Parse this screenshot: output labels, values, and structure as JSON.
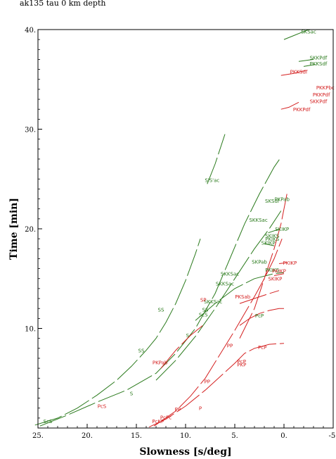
{
  "chart_data": {
    "type": "line",
    "title": "ak135 tau 0 km depth",
    "xlabel": "Slowness [s/deg]",
    "ylabel": "Time [min]",
    "xlim": [
      25,
      -5
    ],
    "ylim": [
      0,
      40
    ],
    "x_ticks": [
      {
        "value": 25,
        "label": "25."
      },
      {
        "value": 20,
        "label": "20."
      },
      {
        "value": 15,
        "label": "15."
      },
      {
        "value": 10,
        "label": "10."
      },
      {
        "value": 5,
        "label": "5."
      },
      {
        "value": 0,
        "label": "0."
      },
      {
        "value": -5,
        "label": "-5."
      }
    ],
    "y_ticks": [
      {
        "value": 10,
        "label": "10."
      },
      {
        "value": 20,
        "label": "20."
      },
      {
        "value": 30,
        "label": "30."
      },
      {
        "value": 40,
        "label": "40."
      }
    ],
    "grid": false,
    "colors": {
      "s_phases": "#2a7a1c",
      "p_phases": "#d42020",
      "axes": "#000000"
    },
    "series": [
      {
        "color": "green",
        "points": [
          [
            25.3,
            0.3
          ],
          [
            23,
            1.0
          ],
          [
            21,
            2.0
          ],
          [
            19,
            3.3
          ],
          [
            17,
            4.8
          ],
          [
            15.5,
            6.2
          ],
          [
            14,
            7.8
          ],
          [
            13,
            9.0
          ],
          [
            12,
            10.6
          ],
          [
            11,
            12.5
          ],
          [
            10,
            14.8
          ],
          [
            9,
            17.5
          ],
          [
            8.5,
            19.0
          ]
        ]
      },
      {
        "color": "green",
        "points": [
          [
            24.8,
            0.2
          ],
          [
            22,
            1.3
          ],
          [
            19,
            2.6
          ],
          [
            16,
            3.8
          ],
          [
            13,
            5.5
          ],
          [
            11,
            7.5
          ],
          [
            9,
            10.0
          ],
          [
            7,
            13.5
          ],
          [
            5.5,
            17.0
          ],
          [
            4,
            20.5
          ],
          [
            2.5,
            23.5
          ],
          [
            1,
            26.2
          ],
          [
            0.3,
            27.2
          ]
        ]
      },
      {
        "color": "green",
        "points": [
          [
            13,
            4.8
          ],
          [
            11,
            6.8
          ],
          [
            9,
            9.2
          ],
          [
            7,
            12.0
          ],
          [
            5,
            15.0
          ],
          [
            3,
            18.0
          ],
          [
            1.5,
            20.0
          ],
          [
            0.3,
            21.8
          ]
        ]
      },
      {
        "color": "green",
        "points": [
          [
            9,
            10.8
          ],
          [
            7,
            12.5
          ],
          [
            5,
            14.0
          ],
          [
            3,
            15.0
          ],
          [
            1,
            15.5
          ],
          [
            0,
            15.6
          ]
        ]
      },
      {
        "color": "green",
        "points": [
          [
            7.8,
            24.5
          ],
          [
            7,
            26.5
          ],
          [
            6,
            29.5
          ]
        ]
      },
      {
        "color": "green",
        "points": [
          [
            0,
            39.0
          ],
          [
            -1,
            39.4
          ],
          [
            -2,
            39.8
          ],
          [
            -2.5,
            40.0
          ]
        ]
      },
      {
        "color": "green",
        "points": [
          [
            -1.5,
            36.8
          ],
          [
            -3,
            37.0
          ]
        ]
      },
      {
        "color": "green",
        "points": [
          [
            -2,
            36.3
          ],
          [
            -3.2,
            36.5
          ]
        ]
      },
      {
        "color": "green",
        "points": [
          [
            2,
            18.5
          ],
          [
            1,
            18.3
          ]
        ]
      },
      {
        "color": "green",
        "points": [
          [
            1.6,
            19.6
          ],
          [
            0.4,
            20.0
          ]
        ]
      },
      {
        "color": "red",
        "points": [
          [
            13.7,
            0.1
          ],
          [
            12,
            0.9
          ],
          [
            10,
            2.2
          ],
          [
            8,
            3.8
          ],
          [
            6,
            5.6
          ],
          [
            5,
            6.5
          ],
          [
            4,
            7.5
          ],
          [
            3,
            8.0
          ],
          [
            1.5,
            8.4
          ],
          [
            0,
            8.5
          ]
        ]
      },
      {
        "color": "red",
        "points": [
          [
            13.2,
            0.2
          ],
          [
            11,
            1.7
          ],
          [
            9.5,
            3.2
          ],
          [
            8,
            5.0
          ],
          [
            7,
            6.6
          ],
          [
            6,
            8.2
          ],
          [
            5,
            9.8
          ],
          [
            4,
            11.5
          ],
          [
            3,
            13.2
          ],
          [
            2,
            15.0
          ],
          [
            1,
            17.0
          ],
          [
            0.2,
            19.0
          ]
        ]
      },
      {
        "color": "red",
        "points": [
          [
            4.5,
            9.0
          ],
          [
            3,
            12.0
          ],
          [
            2,
            15.0
          ],
          [
            1,
            18.0
          ],
          [
            0.3,
            20.5
          ],
          [
            -0.3,
            23.5
          ]
        ]
      },
      {
        "color": "red",
        "points": [
          [
            4.5,
            10.3
          ],
          [
            3.5,
            11.0
          ],
          [
            2.5,
            11.5
          ],
          [
            1.5,
            11.8
          ],
          [
            0.5,
            12.0
          ],
          [
            0,
            12.0
          ]
        ]
      },
      {
        "color": "red",
        "points": [
          [
            12.5,
            6.0
          ],
          [
            11,
            7.8
          ],
          [
            9.5,
            9.3
          ],
          [
            8,
            10.5
          ]
        ]
      },
      {
        "color": "red",
        "points": [
          [
            4.5,
            12.5
          ],
          [
            3,
            13.0
          ],
          [
            1.5,
            13.5
          ],
          [
            0.5,
            13.8
          ]
        ]
      },
      {
        "color": "red",
        "points": [
          [
            0.3,
            32.0
          ],
          [
            -0.5,
            32.2
          ],
          [
            -1.5,
            32.7
          ]
        ]
      },
      {
        "color": "red",
        "points": [
          [
            0.3,
            35.4
          ],
          [
            -1,
            35.6
          ],
          [
            -2.2,
            35.9
          ]
        ]
      },
      {
        "color": "red",
        "points": [
          [
            0.5,
            16.5
          ],
          [
            -0.3,
            16.6
          ]
        ]
      },
      {
        "color": "red",
        "points": [
          [
            1,
            15.3
          ],
          [
            0,
            15.5
          ]
        ]
      }
    ],
    "labels": [
      {
        "text": "PKPab",
        "x": 0.2,
        "y": 22.8,
        "color": "green"
      },
      {
        "text": "SKSac",
        "x": -2.5,
        "y": 39.6,
        "color": "green"
      },
      {
        "text": "SKKPdf",
        "x": -3.5,
        "y": 37.0,
        "color": "green"
      },
      {
        "text": "PKKSdf",
        "x": -3.5,
        "y": 36.4,
        "color": "green"
      },
      {
        "text": "PKKSdf",
        "x": -1.5,
        "y": 35.6,
        "color": "red"
      },
      {
        "text": "PKKPbc",
        "x": -4.2,
        "y": 34.0,
        "color": "red"
      },
      {
        "text": "PKKPdf",
        "x": -3.8,
        "y": 33.3,
        "color": "red"
      },
      {
        "text": "SKKPdf",
        "x": -3.5,
        "y": 32.6,
        "color": "red"
      },
      {
        "text": "PKKPdf",
        "x": -1.8,
        "y": 31.8,
        "color": "red"
      },
      {
        "text": "S'S'ac",
        "x": 7.3,
        "y": 24.7,
        "color": "green"
      },
      {
        "text": "SKSdf",
        "x": 1.2,
        "y": 22.6,
        "color": "green"
      },
      {
        "text": "SKKSac",
        "x": 2.6,
        "y": 20.7,
        "color": "green"
      },
      {
        "text": "SKIKP",
        "x": 0.2,
        "y": 19.8,
        "color": "green"
      },
      {
        "text": "SKIKS",
        "x": 1.2,
        "y": 19.1,
        "color": "green"
      },
      {
        "text": "PKIKS",
        "x": 1.2,
        "y": 18.8,
        "color": "green"
      },
      {
        "text": "SKIKP",
        "x": 1.6,
        "y": 18.4,
        "color": "green"
      },
      {
        "text": "SKPab",
        "x": 2.5,
        "y": 16.5,
        "color": "green"
      },
      {
        "text": "PKIKS",
        "x": 1.2,
        "y": 15.7,
        "color": "green"
      },
      {
        "text": "SKKSac",
        "x": 5.5,
        "y": 15.3,
        "color": "green"
      },
      {
        "text": "SKKSac",
        "x": 6.0,
        "y": 14.3,
        "color": "green"
      },
      {
        "text": "SKKSac",
        "x": 7.2,
        "y": 12.5,
        "color": "green"
      },
      {
        "text": "PKIKP",
        "x": -0.6,
        "y": 16.4,
        "color": "red"
      },
      {
        "text": "PKIKP",
        "x": 0.5,
        "y": 15.6,
        "color": "red"
      },
      {
        "text": "SKIKP",
        "x": 0.9,
        "y": 14.8,
        "color": "red"
      },
      {
        "text": "PKSab",
        "x": 4.2,
        "y": 13.0,
        "color": "red"
      },
      {
        "text": "SP",
        "x": 8.2,
        "y": 12.7,
        "color": "red"
      },
      {
        "text": "SS",
        "x": 12.5,
        "y": 11.7,
        "color": "green"
      },
      {
        "text": "SS",
        "x": 8.0,
        "y": 11.7,
        "color": "green"
      },
      {
        "text": "ScS",
        "x": 8.2,
        "y": 11.2,
        "color": "green"
      },
      {
        "text": "PcP",
        "x": 2.5,
        "y": 11.1,
        "color": "green"
      },
      {
        "text": "S",
        "x": 9.8,
        "y": 9.1,
        "color": "green"
      },
      {
        "text": "SS",
        "x": 14.5,
        "y": 7.6,
        "color": "green"
      },
      {
        "text": "PKPab",
        "x": 12.6,
        "y": 6.4,
        "color": "red"
      },
      {
        "text": "PP",
        "x": 5.5,
        "y": 8.1,
        "color": "red"
      },
      {
        "text": "PcP",
        "x": 2.2,
        "y": 7.9,
        "color": "red"
      },
      {
        "text": "PcP",
        "x": 4.3,
        "y": 6.5,
        "color": "red"
      },
      {
        "text": "PKP",
        "x": 4.3,
        "y": 6.2,
        "color": "red"
      },
      {
        "text": "PP",
        "x": 7.8,
        "y": 4.5,
        "color": "red"
      },
      {
        "text": "S",
        "x": 15.5,
        "y": 3.3,
        "color": "green"
      },
      {
        "text": "PcS",
        "x": 18.5,
        "y": 2.0,
        "color": "red"
      },
      {
        "text": "PP",
        "x": 10.8,
        "y": 1.7,
        "color": "red"
      },
      {
        "text": "P",
        "x": 8.5,
        "y": 1.8,
        "color": "red"
      },
      {
        "text": "PcPc",
        "x": 12.0,
        "y": 0.9,
        "color": "red"
      },
      {
        "text": "PcKP",
        "x": 12.8,
        "y": 0.5,
        "color": "red"
      },
      {
        "text": "ScS",
        "x": 24.0,
        "y": 0.5,
        "color": "green"
      }
    ]
  }
}
